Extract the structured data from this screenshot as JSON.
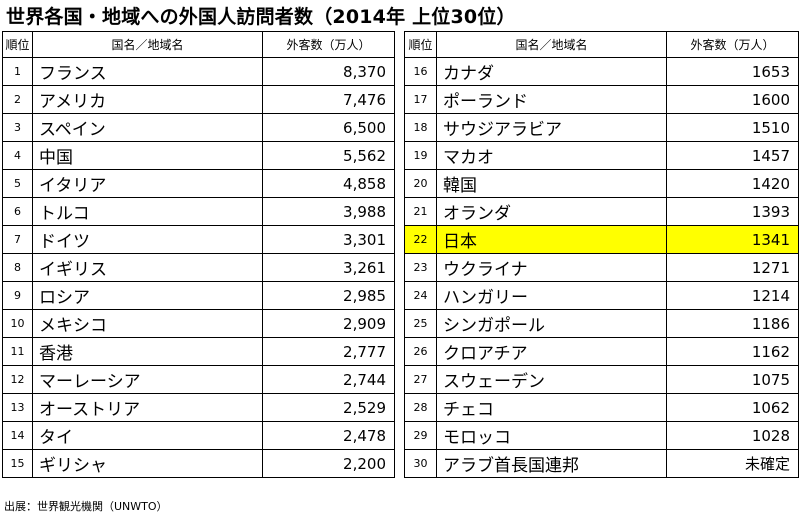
{
  "title": "世界各国・地域への外国人訪問者数（2014年 上位30位）",
  "headers": {
    "rank": "順位",
    "name": "国名／地域名",
    "value": "外客数（万人）"
  },
  "left": [
    {
      "rank": "1",
      "name": "フランス",
      "value": "8,370"
    },
    {
      "rank": "2",
      "name": "アメリカ",
      "value": "7,476"
    },
    {
      "rank": "3",
      "name": "スペイン",
      "value": "6,500"
    },
    {
      "rank": "4",
      "name": "中国",
      "value": "5,562"
    },
    {
      "rank": "5",
      "name": "イタリア",
      "value": "4,858"
    },
    {
      "rank": "6",
      "name": "トルコ",
      "value": "3,988"
    },
    {
      "rank": "7",
      "name": "ドイツ",
      "value": "3,301"
    },
    {
      "rank": "8",
      "name": "イギリス",
      "value": "3,261"
    },
    {
      "rank": "9",
      "name": "ロシア",
      "value": "2,985"
    },
    {
      "rank": "10",
      "name": "メキシコ",
      "value": "2,909"
    },
    {
      "rank": "11",
      "name": "香港",
      "value": "2,777"
    },
    {
      "rank": "12",
      "name": "マーレーシア",
      "value": "2,744"
    },
    {
      "rank": "13",
      "name": "オーストリア",
      "value": "2,529"
    },
    {
      "rank": "14",
      "name": "タイ",
      "value": "2,478"
    },
    {
      "rank": "15",
      "name": "ギリシャ",
      "value": "2,200"
    }
  ],
  "right": [
    {
      "rank": "16",
      "name": "カナダ",
      "value": "1653"
    },
    {
      "rank": "17",
      "name": "ポーランド",
      "value": "1600"
    },
    {
      "rank": "18",
      "name": "サウジアラビア",
      "value": "1510"
    },
    {
      "rank": "19",
      "name": "マカオ",
      "value": "1457"
    },
    {
      "rank": "20",
      "name": "韓国",
      "value": "1420"
    },
    {
      "rank": "21",
      "name": "オランダ",
      "value": "1393"
    },
    {
      "rank": "22",
      "name": "日本",
      "value": "1341",
      "highlight": true
    },
    {
      "rank": "23",
      "name": "ウクライナ",
      "value": "1271"
    },
    {
      "rank": "24",
      "name": "ハンガリー",
      "value": "1214"
    },
    {
      "rank": "25",
      "name": "シンガポール",
      "value": "1186"
    },
    {
      "rank": "26",
      "name": "クロアチア",
      "value": "1162"
    },
    {
      "rank": "27",
      "name": "スウェーデン",
      "value": "1075"
    },
    {
      "rank": "28",
      "name": "チェコ",
      "value": "1062"
    },
    {
      "rank": "29",
      "name": "モロッコ",
      "value": "1028"
    },
    {
      "rank": "30",
      "name": "アラブ首長国連邦",
      "value": "未確定"
    }
  ],
  "highlight_color": "#ffff00",
  "source": "出展：世界観光機関（UNWTO）"
}
